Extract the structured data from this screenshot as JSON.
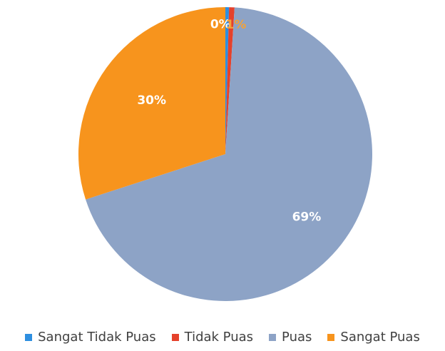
{
  "chart_data": {
    "type": "pie",
    "title": "",
    "start_angle_deg": 0,
    "direction": "clockwise",
    "slices": [
      {
        "name": "Sangat Tidak Puas",
        "value": 0.4,
        "label": "0%",
        "color": "#2e8fe0",
        "label_color": "#ffffff"
      },
      {
        "name": "Tidak Puas",
        "value": 0.6,
        "label": "1%",
        "color": "#e5412b",
        "label_color": "#f2a23a"
      },
      {
        "name": "Puas",
        "value": 69,
        "label": "69%",
        "color": "#8da3c6",
        "label_color": "#ffffff"
      },
      {
        "name": "Sangat Puas",
        "value": 30,
        "label": "30%",
        "color": "#f7941d",
        "label_color": "#ffffff"
      }
    ],
    "legend_position": "bottom"
  }
}
